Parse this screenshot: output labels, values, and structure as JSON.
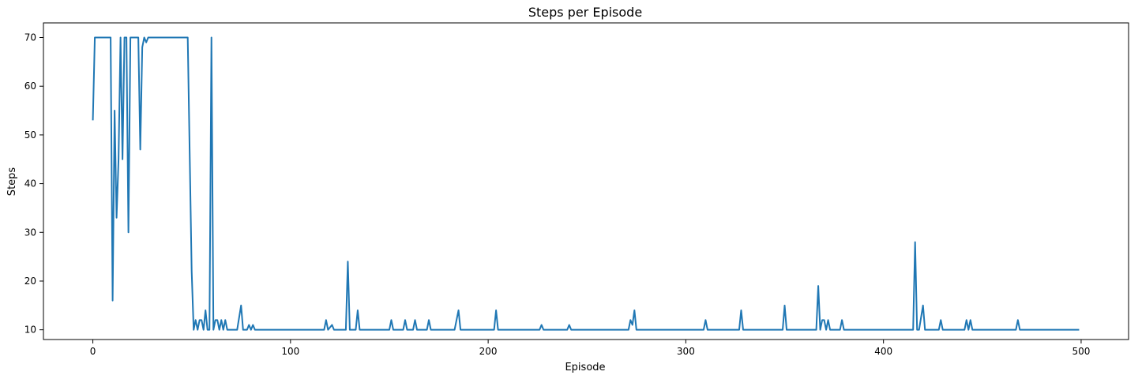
{
  "chart_data": {
    "type": "line",
    "title": "Steps per Episode",
    "xlabel": "Episode",
    "ylabel": "Steps",
    "xlim": [
      -25,
      524
    ],
    "ylim": [
      8.0,
      73.0
    ],
    "xticks": [
      0,
      100,
      200,
      300,
      400,
      500
    ],
    "yticks": [
      10,
      20,
      30,
      40,
      50,
      60,
      70
    ],
    "grid": false,
    "series": [
      {
        "color": "#1f77b4",
        "points": [
          [
            0,
            53
          ],
          [
            1,
            70
          ],
          [
            9,
            70
          ],
          [
            10,
            16
          ],
          [
            11,
            55
          ],
          [
            12,
            33
          ],
          [
            13,
            45
          ],
          [
            14,
            70
          ],
          [
            15,
            45
          ],
          [
            16,
            70
          ],
          [
            17,
            70
          ],
          [
            18,
            30
          ],
          [
            19,
            70
          ],
          [
            22,
            70
          ],
          [
            23,
            70
          ],
          [
            24,
            47
          ],
          [
            25,
            68
          ],
          [
            26,
            70
          ],
          [
            27,
            69
          ],
          [
            28,
            70
          ],
          [
            48,
            70
          ],
          [
            50,
            22
          ],
          [
            51,
            10
          ],
          [
            52,
            12
          ],
          [
            53,
            10
          ],
          [
            54,
            12
          ],
          [
            55,
            12
          ],
          [
            56,
            10
          ],
          [
            57,
            14
          ],
          [
            58,
            10
          ],
          [
            59,
            10
          ],
          [
            60,
            70
          ],
          [
            61,
            10
          ],
          [
            62,
            12
          ],
          [
            63,
            12
          ],
          [
            64,
            10
          ],
          [
            65,
            12
          ],
          [
            66,
            10
          ],
          [
            67,
            12
          ],
          [
            68,
            10
          ],
          [
            73,
            10
          ],
          [
            75,
            15
          ],
          [
            76,
            10
          ],
          [
            78,
            10
          ],
          [
            79,
            11
          ],
          [
            80,
            10
          ],
          [
            81,
            11
          ],
          [
            82,
            10
          ],
          [
            117,
            10
          ],
          [
            118,
            12
          ],
          [
            119,
            10
          ],
          [
            121,
            11
          ],
          [
            122,
            10
          ],
          [
            128,
            10
          ],
          [
            129,
            24
          ],
          [
            130,
            10
          ],
          [
            133,
            10
          ],
          [
            134,
            14
          ],
          [
            135,
            10
          ],
          [
            150,
            10
          ],
          [
            151,
            12
          ],
          [
            152,
            10
          ],
          [
            157,
            10
          ],
          [
            158,
            12
          ],
          [
            159,
            10
          ],
          [
            162,
            10
          ],
          [
            163,
            12
          ],
          [
            164,
            10
          ],
          [
            169,
            10
          ],
          [
            170,
            12
          ],
          [
            171,
            10
          ],
          [
            183,
            10
          ],
          [
            185,
            14
          ],
          [
            186,
            10
          ],
          [
            203,
            10
          ],
          [
            204,
            14
          ],
          [
            205,
            10
          ],
          [
            226,
            10
          ],
          [
            227,
            11
          ],
          [
            228,
            10
          ],
          [
            240,
            10
          ],
          [
            241,
            11
          ],
          [
            242,
            10
          ],
          [
            271,
            10
          ],
          [
            272,
            12
          ],
          [
            273,
            11
          ],
          [
            274,
            14
          ],
          [
            275,
            10
          ],
          [
            309,
            10
          ],
          [
            310,
            12
          ],
          [
            311,
            10
          ],
          [
            327,
            10
          ],
          [
            328,
            14
          ],
          [
            329,
            10
          ],
          [
            349,
            10
          ],
          [
            350,
            15
          ],
          [
            351,
            10
          ],
          [
            366,
            10
          ],
          [
            367,
            19
          ],
          [
            368,
            10
          ],
          [
            369,
            12
          ],
          [
            370,
            12
          ],
          [
            371,
            10
          ],
          [
            372,
            12
          ],
          [
            373,
            10
          ],
          [
            378,
            10
          ],
          [
            379,
            12
          ],
          [
            380,
            10
          ],
          [
            415,
            10
          ],
          [
            416,
            28
          ],
          [
            417,
            10
          ],
          [
            418,
            10
          ],
          [
            420,
            15
          ],
          [
            421,
            10
          ],
          [
            428,
            10
          ],
          [
            429,
            12
          ],
          [
            430,
            10
          ],
          [
            441,
            10
          ],
          [
            442,
            12
          ],
          [
            443,
            10
          ],
          [
            444,
            12
          ],
          [
            445,
            10
          ],
          [
            467,
            10
          ],
          [
            468,
            12
          ],
          [
            469,
            10
          ],
          [
            499,
            10
          ]
        ]
      }
    ]
  }
}
